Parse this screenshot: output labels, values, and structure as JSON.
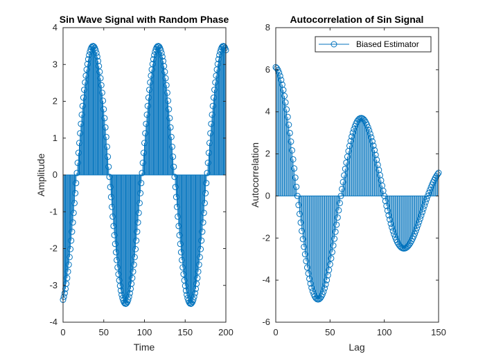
{
  "chart_data": [
    {
      "type": "stem",
      "title": "Sin Wave Signal with Random Phase",
      "xlabel": "Time",
      "ylabel": "Amplitude",
      "xlim": [
        0,
        200
      ],
      "ylim": [
        -4,
        4
      ],
      "xticks": [
        "0",
        "50",
        "100",
        "150",
        "200"
      ],
      "yticks": [
        "-4",
        "-3",
        "-2",
        "-1",
        "0",
        "1",
        "2",
        "3",
        "4"
      ],
      "signal": {
        "amplitude": 3.5,
        "period": 80,
        "phase_rad": -1.32,
        "n_start": 0,
        "n_end": 200
      },
      "color": "#0072BD",
      "marker": "circle",
      "grid": false
    },
    {
      "type": "stem",
      "title": "Autocorrelation of Sin Signal",
      "xlabel": "Lag",
      "ylabel": "Autocorrelation",
      "xlim": [
        0,
        150
      ],
      "ylim": [
        -6,
        8
      ],
      "xticks": [
        "0",
        "50",
        "100",
        "150"
      ],
      "yticks": [
        "-6",
        "-4",
        "-2",
        "0",
        "2",
        "4",
        "6",
        "8"
      ],
      "signal": {
        "peak": 6.12,
        "period": 80,
        "n_total": 201,
        "lag_start": 0,
        "lag_end": 150
      },
      "legend": {
        "entries": [
          "Biased Estimator"
        ],
        "placement": "top-right"
      },
      "color": "#0072BD",
      "marker": "circle",
      "grid": false
    }
  ]
}
